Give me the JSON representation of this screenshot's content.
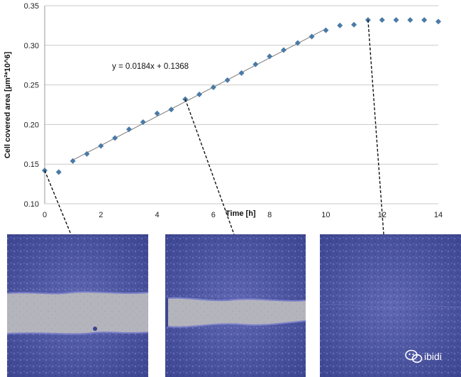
{
  "chart_data": {
    "type": "scatter",
    "title": "",
    "xlabel": "Time [h]",
    "ylabel": "Cell covered area [µm²*10^6]",
    "xlim": [
      0,
      14
    ],
    "ylim": [
      0.1,
      0.35
    ],
    "x_ticks": [
      "0",
      "2",
      "4",
      "6",
      "8",
      "10",
      "12",
      "14"
    ],
    "y_ticks": [
      "0.10",
      "0.15",
      "0.20",
      "0.25",
      "0.30",
      "0.35"
    ],
    "grid": "horizontal",
    "legend": "none",
    "series": [
      {
        "marker": "diamond",
        "color": "#4a7aa6",
        "x": [
          0,
          0.5,
          1,
          1.5,
          2,
          2.5,
          3,
          3.5,
          4,
          4.5,
          5,
          5.5,
          6,
          6.5,
          7,
          7.5,
          8,
          8.5,
          9,
          9.5,
          10,
          10.5,
          11,
          11.5,
          12,
          12.5,
          13,
          13.5,
          14
        ],
        "y": [
          0.142,
          0.14,
          0.154,
          0.163,
          0.173,
          0.183,
          0.194,
          0.203,
          0.214,
          0.219,
          0.232,
          0.238,
          0.247,
          0.256,
          0.265,
          0.276,
          0.286,
          0.294,
          0.303,
          0.311,
          0.319,
          0.325,
          0.326,
          0.332,
          0.332,
          0.332,
          0.332,
          0.332,
          0.33
        ]
      }
    ],
    "trendline": {
      "slope": 0.0184,
      "intercept": 0.1368,
      "x_range": [
        1,
        10
      ],
      "color": "#7a7a7a",
      "annotation": "y = 0.0184x + 0.1368"
    },
    "callouts": [
      {
        "from_x": 0,
        "from_y": 0.142,
        "panel": 0
      },
      {
        "from_x": 5,
        "from_y": 0.232,
        "panel": 1
      },
      {
        "from_x": 11.5,
        "from_y": 0.332,
        "panel": 2
      }
    ]
  },
  "micrographs": [
    {
      "time_h": 0,
      "gap": "wide"
    },
    {
      "time_h": 5,
      "gap": "narrow"
    },
    {
      "time_h": 11.5,
      "gap": "closed"
    }
  ],
  "watermark": {
    "text": "ibidi",
    "icon": "wechat-icon"
  }
}
